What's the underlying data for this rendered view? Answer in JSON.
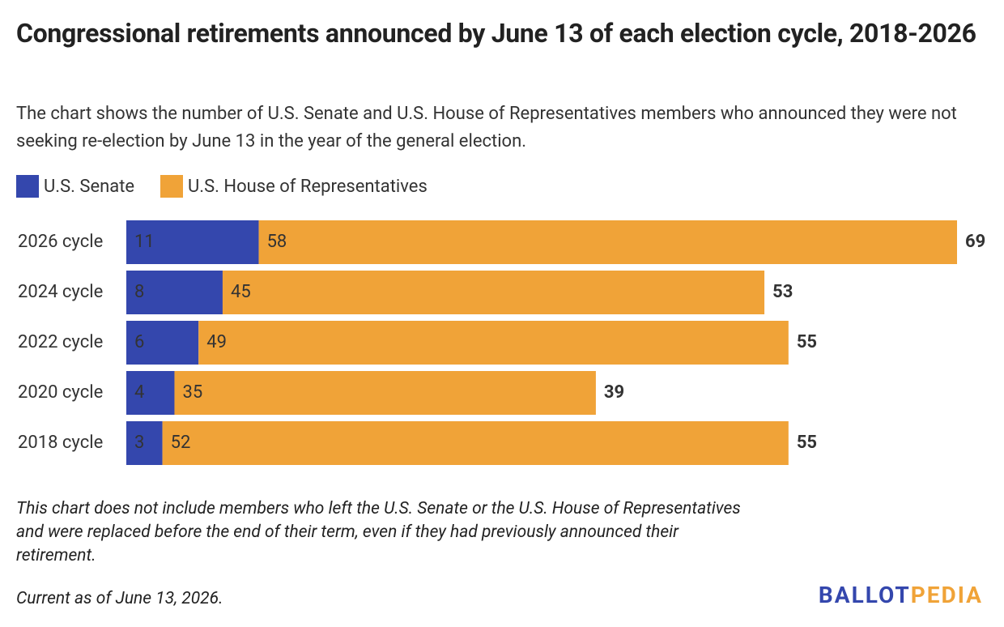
{
  "chart_data": {
    "type": "stacked-bar-horizontal",
    "title": "Congressional retirements announced by June 13 of each election cycle, 2018-2026",
    "subtitle": "The chart shows the number of U.S. Senate and U.S. House of Representatives members who announced they were not seeking re-election by June 13 in the year of the general election.",
    "categories": [
      "2026 cycle",
      "2024 cycle",
      "2022 cycle",
      "2020 cycle",
      "2018 cycle"
    ],
    "series": [
      {
        "name": "U.S. Senate",
        "color": "#3447ad",
        "values": [
          11,
          8,
          6,
          4,
          3
        ]
      },
      {
        "name": "U.S. House of Representatives",
        "color": "#f0a338",
        "values": [
          58,
          45,
          49,
          35,
          52
        ]
      }
    ],
    "totals": [
      69,
      53,
      55,
      39,
      55
    ],
    "note": "This chart does not include members who left the U.S. Senate or the U.S. House of Representatives and were replaced before the end of their term, even if they had previously announced their retirement.",
    "source": "Current as of June 13, 2026.",
    "logo": [
      "BALLOT",
      "PEDIA"
    ]
  }
}
